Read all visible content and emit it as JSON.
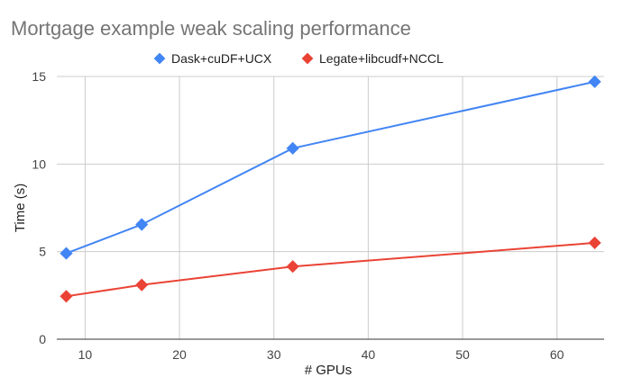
{
  "chart_data": {
    "type": "line",
    "title": "Mortgage example weak scaling performance",
    "xlabel": "# GPUs",
    "ylabel": "Time (s)",
    "xlim": [
      7,
      65
    ],
    "ylim": [
      0,
      15
    ],
    "xticks": [
      10,
      20,
      30,
      40,
      50,
      60
    ],
    "yticks": [
      0,
      5,
      10,
      15
    ],
    "grid": true,
    "legend_position": "top",
    "x": [
      8,
      16,
      32,
      64
    ],
    "series": [
      {
        "name": "Dask+cuDF+UCX",
        "color": "#4285f4",
        "values": [
          4.9,
          6.55,
          10.9,
          14.7
        ]
      },
      {
        "name": "Legate+libcudf+NCCL",
        "color": "#ea4335",
        "values": [
          2.45,
          3.1,
          4.15,
          5.5
        ]
      }
    ]
  }
}
